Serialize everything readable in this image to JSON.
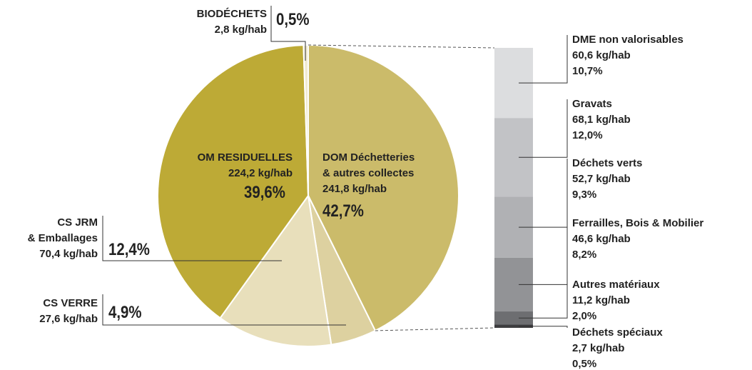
{
  "chart_data": [
    {
      "type": "pie",
      "categories": [
        "DOM Déchetteries\n& autres collectes",
        "CS VERRE",
        "CS JRM\n& Emballages",
        "OM RESIDUELLES",
        "BIODÉCHETS"
      ],
      "sublabels": [
        "241,8 kg/hab",
        "27,6 kg/hab",
        "70,4 kg/hab",
        "224,2 kg/hab",
        "2,8 kg/hab"
      ],
      "values": [
        42.7,
        4.9,
        12.4,
        39.6,
        0.5
      ],
      "value_labels": [
        "42,7%",
        "4,9%",
        "12,4%",
        "39,6%",
        "0,5%"
      ],
      "colors": [
        "#cbbb6a",
        "#ddd1a0",
        "#e8dfbb",
        "#bdaa36",
        "#f0ead0"
      ]
    },
    {
      "type": "bar",
      "categories": [
        "DME non valorisables",
        "Gravats",
        "Déchets verts",
        "Ferrailles, Bois & Mobilier",
        "Autres matériaux",
        "Déchets spéciaux"
      ],
      "sublabels": [
        "60,6 kg/hab",
        "68,1 kg/hab",
        "52,7 kg/hab",
        "46,6 kg/hab",
        "11,2 kg/hab",
        "2,7 kg/hab"
      ],
      "values": [
        10.7,
        12.0,
        9.3,
        8.2,
        2.0,
        0.5
      ],
      "value_labels": [
        "10,7%",
        "12,0%",
        "9,3%",
        "8,2%",
        "2,0%",
        "0,5%"
      ],
      "colors": [
        "#dcdddf",
        "#c2c3c6",
        "#b0b1b4",
        "#929396",
        "#6d6e71",
        "#3d3d3f"
      ]
    }
  ]
}
